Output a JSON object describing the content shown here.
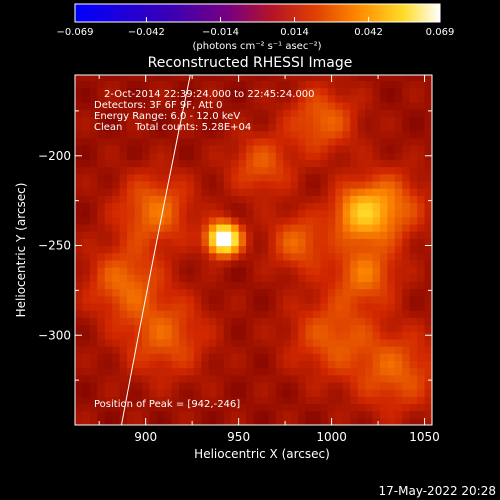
{
  "chart_data": {
    "type": "heatmap",
    "title": "Reconstructed RHESSI Image",
    "xlabel": "Heliocentric X (arcsec)",
    "ylabel": "Heliocentric Y (arcsec)",
    "xlim": [
      862,
      1054
    ],
    "ylim": [
      -350,
      -155
    ],
    "x_ticks": [
      900,
      950,
      1000,
      1050
    ],
    "x_tick_labels": [
      "900",
      "950",
      "1000",
      "1050"
    ],
    "y_ticks": [
      -200,
      -250,
      -300
    ],
    "y_tick_labels": [
      "−200",
      "−250",
      "−300"
    ],
    "colorbar": {
      "min": -0.069,
      "max": 0.069,
      "tick_values": [
        -0.069,
        -0.042,
        -0.014,
        0.014,
        0.042,
        0.069
      ],
      "tick_labels": [
        "−0.069",
        "−0.042",
        "−0.014",
        "0.014",
        "0.042",
        "0.069"
      ],
      "units_label": "(photons cm⁻² s⁻¹ asec⁻²)"
    },
    "annotations": [
      "2-Oct-2014 22:39:24.000 to 22:45:24.000",
      "Detectors: 3F 6F 9F, Att 0",
      "Energy Range: 6.0 - 12.0 keV",
      "Clean    Total counts: 5.28E+04",
      "Position of Peak = [942,-246]"
    ],
    "peak": {
      "x": 942,
      "y": -246,
      "value": 0.069
    },
    "sources": [
      {
        "x": 942,
        "y": -246,
        "amp": 0.069,
        "sigma": 6
      },
      {
        "x": 1015,
        "y": -232,
        "amp": 0.026,
        "sigma": 10
      },
      {
        "x": 1030,
        "y": -228,
        "amp": 0.02,
        "sigma": 14
      },
      {
        "x": 1018,
        "y": -265,
        "amp": 0.02,
        "sigma": 12
      },
      {
        "x": 982,
        "y": -248,
        "amp": 0.018,
        "sigma": 11
      },
      {
        "x": 995,
        "y": -180,
        "amp": 0.018,
        "sigma": 13
      },
      {
        "x": 1000,
        "y": -300,
        "amp": 0.016,
        "sigma": 16
      },
      {
        "x": 905,
        "y": -230,
        "amp": 0.02,
        "sigma": 14
      },
      {
        "x": 888,
        "y": -270,
        "amp": 0.018,
        "sigma": 14
      },
      {
        "x": 910,
        "y": -300,
        "amp": 0.017,
        "sigma": 16
      },
      {
        "x": 1035,
        "y": -320,
        "amp": 0.017,
        "sigma": 16
      },
      {
        "x": 962,
        "y": -205,
        "amp": 0.016,
        "sigma": 12
      }
    ],
    "background_level": 0.0135,
    "limb_curve": [
      {
        "x": 924,
        "y": -155
      },
      {
        "x": 905,
        "y": -250
      },
      {
        "x": 887,
        "y": -350
      }
    ],
    "grid": false
  },
  "footer_timestamp": "17-May-2022 20:28",
  "colors": {
    "background": "#000000",
    "text": "#ffffff"
  }
}
